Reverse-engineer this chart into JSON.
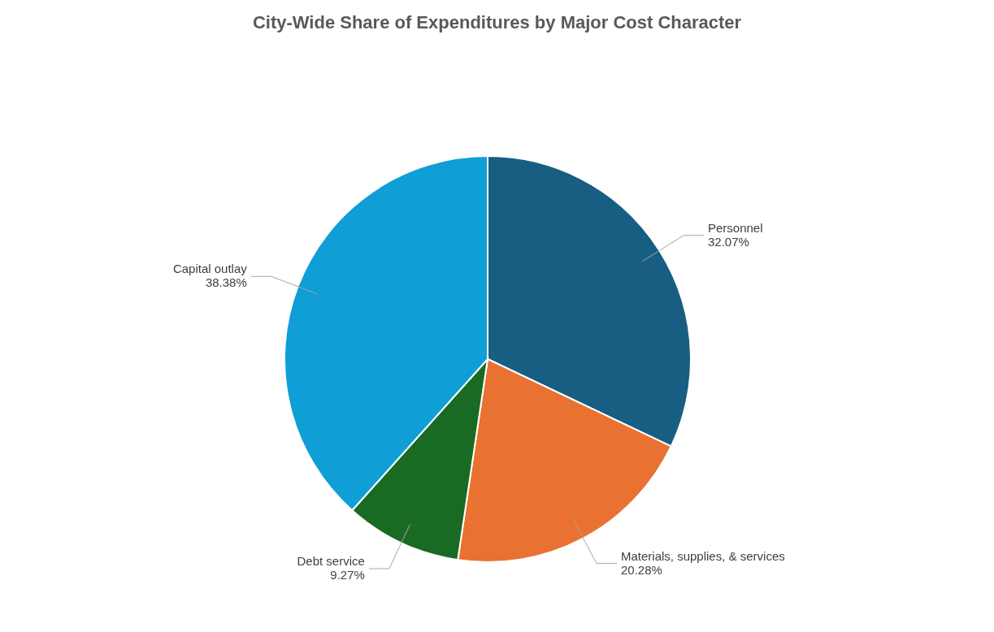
{
  "chart_data": {
    "type": "pie",
    "title": "City-Wide Share of Expenditures by Major Cost Character",
    "categories": [
      "Personnel",
      "Materials, supplies, & services",
      "Debt service",
      "Capital outlay"
    ],
    "values": [
      32.07,
      20.28,
      9.27,
      38.38
    ],
    "colors": [
      "#175e82",
      "#e97132",
      "#196b24",
      "#0f9ed5"
    ],
    "value_labels": [
      "32.07%",
      "20.28%",
      "9.27%",
      "38.38%"
    ],
    "legend": false
  }
}
